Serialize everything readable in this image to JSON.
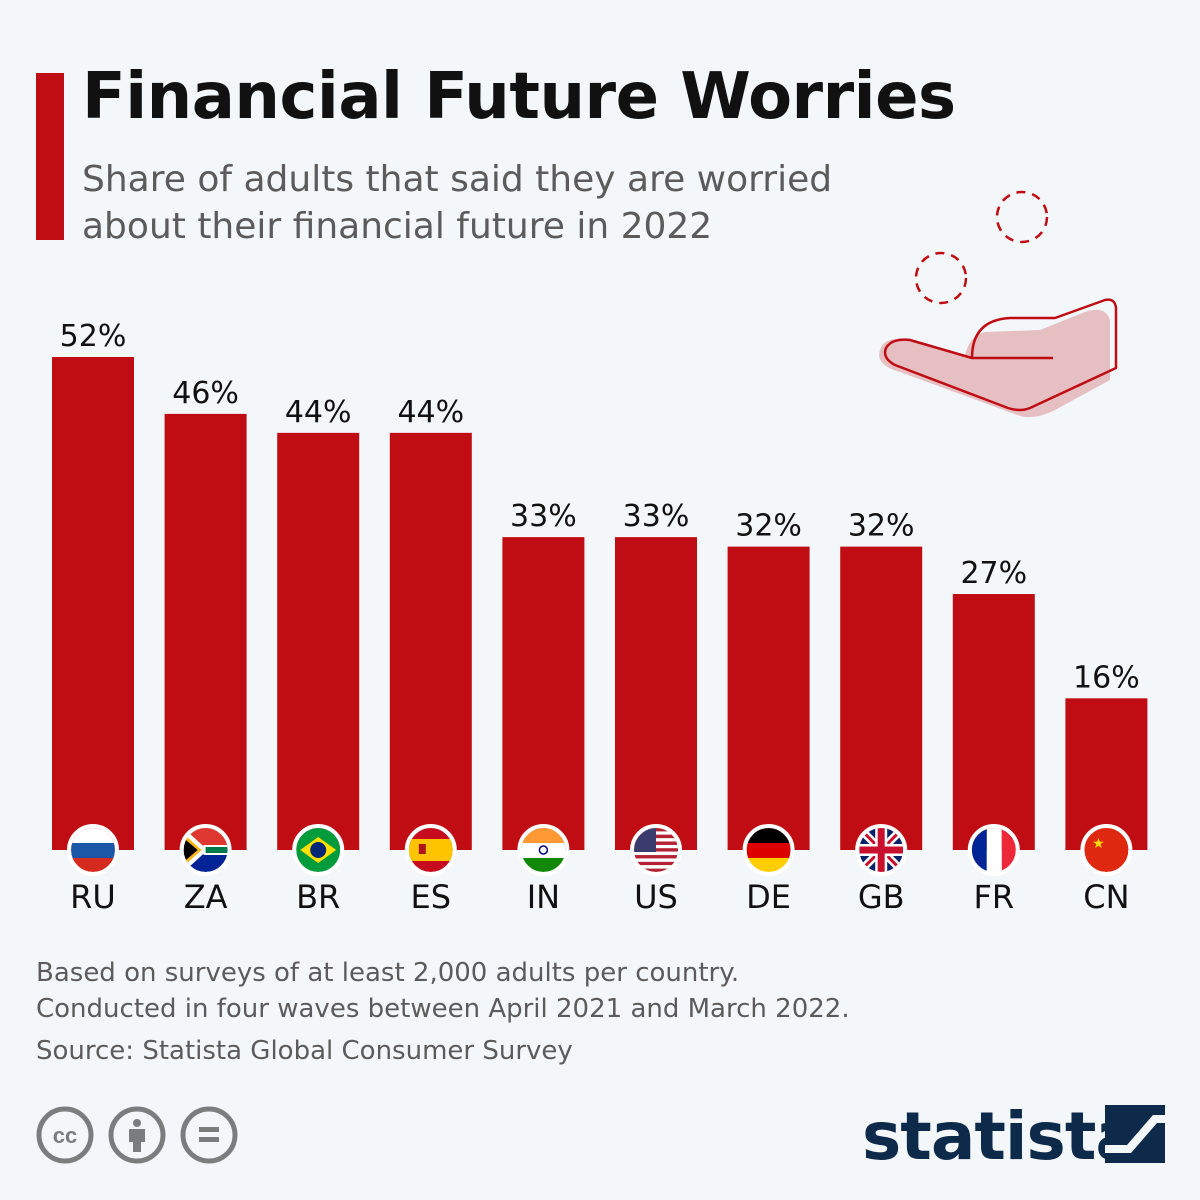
{
  "header": {
    "title": "Financial Future Worries",
    "subtitle_lines": [
      "Share of adults that said they are worried",
      "about their financial future in 2022"
    ]
  },
  "chart_data": {
    "type": "bar",
    "title": "Financial Future Worries",
    "subtitle": "Share of adults that said they are worried about their financial future in 2022",
    "categories": [
      "RU",
      "ZA",
      "BR",
      "ES",
      "IN",
      "US",
      "DE",
      "GB",
      "FR",
      "CN"
    ],
    "values": [
      52,
      46,
      44,
      44,
      33,
      33,
      32,
      32,
      27,
      16
    ],
    "labels": [
      "52%",
      "46%",
      "44%",
      "44%",
      "33%",
      "33%",
      "32%",
      "32%",
      "27%",
      "16%"
    ],
    "unit": "%",
    "ylim": [
      0,
      52
    ],
    "xlabel": "",
    "ylabel": "",
    "grid": false,
    "bar_color": "#c00d14"
  },
  "footer": {
    "note_lines": [
      "Based on surveys of at least 2,000 adults per country.",
      "Conducted in four waves between April 2021 and March 2022."
    ],
    "source": "Source: Statista Global Consumer Survey",
    "logo": "statista",
    "license_icons": [
      "cc-icon",
      "attribution-icon",
      "no-derivatives-icon"
    ]
  }
}
